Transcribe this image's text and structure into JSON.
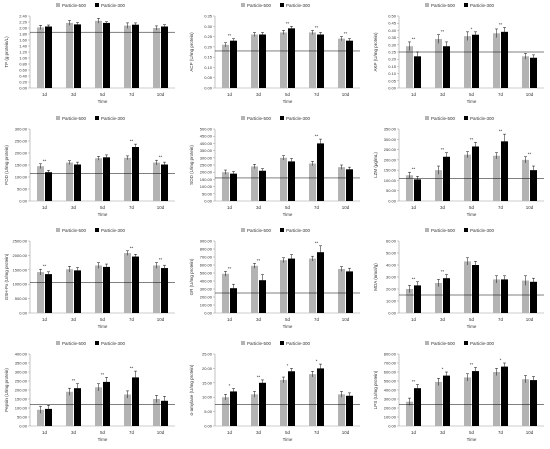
{
  "chart_data": [
    {
      "type": "bar",
      "ylabel": "TP (g protein/L)",
      "xlabel": "Time",
      "ylim": [
        0,
        2.4
      ],
      "yticks": [
        0,
        0.2,
        0.4,
        0.6,
        0.8,
        1.0,
        1.2,
        1.4,
        1.6,
        1.8,
        2.0,
        2.2,
        2.4
      ],
      "ytick_labels": [
        "0.00",
        "0.20",
        "0.40",
        "0.60",
        "0.80",
        "1.00",
        "1.20",
        "1.40",
        "1.60",
        "1.80",
        "2.00",
        "2.20",
        "2.40"
      ],
      "ref": 1.86,
      "categories": [
        "1d",
        "3d",
        "5d",
        "7d",
        "10d"
      ],
      "series": [
        {
          "name": "Particle-500",
          "values": [
            2.02,
            2.17,
            2.24,
            2.08,
            2.0
          ],
          "err": [
            0.07,
            0.08,
            0.08,
            0.09,
            0.07
          ]
        },
        {
          "name": "Particle-300",
          "values": [
            2.05,
            2.12,
            2.17,
            2.11,
            2.05
          ],
          "err": [
            0.05,
            0.06,
            0.04,
            0.06,
            0.06
          ]
        }
      ],
      "sig": [
        "",
        "",
        "",
        "",
        ""
      ]
    },
    {
      "type": "bar",
      "ylabel": "ACP (U/mg protein)",
      "xlabel": "Time",
      "ylim": [
        0,
        0.35
      ],
      "yticks": [
        0,
        0.05,
        0.1,
        0.15,
        0.2,
        0.25,
        0.3,
        0.35
      ],
      "ytick_labels": [
        "0.00",
        "0.05",
        "0.10",
        "0.15",
        "0.20",
        "0.25",
        "0.30",
        "0.35"
      ],
      "ref": 0.18,
      "categories": [
        "1d",
        "3d",
        "5d",
        "7d",
        "10d"
      ],
      "series": [
        {
          "name": "Particle-500",
          "values": [
            0.21,
            0.26,
            0.27,
            0.27,
            0.24
          ],
          "err": [
            0.01,
            0.01,
            0.01,
            0.01,
            0.01
          ]
        },
        {
          "name": "Particle-300",
          "values": [
            0.23,
            0.26,
            0.29,
            0.26,
            0.23
          ],
          "err": [
            0.01,
            0.01,
            0.01,
            0.01,
            0.01
          ]
        }
      ],
      "sig": [
        "**",
        "",
        "**",
        "**",
        "**"
      ]
    },
    {
      "type": "bar",
      "ylabel": "AKP (U/mg protein)",
      "xlabel": "Time",
      "ylim": [
        0,
        0.5
      ],
      "yticks": [
        0,
        0.05,
        0.1,
        0.15,
        0.2,
        0.25,
        0.3,
        0.35,
        0.4,
        0.45,
        0.5
      ],
      "ytick_labels": [
        "0.00",
        "0.05",
        "0.10",
        "0.15",
        "0.20",
        "0.25",
        "0.30",
        "0.35",
        "0.40",
        "0.45",
        "0.50"
      ],
      "ref": 0.25,
      "categories": [
        "1d",
        "3d",
        "5d",
        "7d",
        "10d"
      ],
      "series": [
        {
          "name": "Particle-500",
          "values": [
            0.29,
            0.34,
            0.36,
            0.38,
            0.22
          ],
          "err": [
            0.03,
            0.03,
            0.03,
            0.03,
            0.02
          ]
        },
        {
          "name": "Particle-300",
          "values": [
            0.22,
            0.29,
            0.37,
            0.39,
            0.21
          ],
          "err": [
            0.03,
            0.03,
            0.02,
            0.03,
            0.02
          ]
        }
      ],
      "sig": [
        "**",
        "**",
        "*",
        "**",
        ""
      ]
    },
    {
      "type": "bar",
      "ylabel": "POD (U/mg protein)",
      "xlabel": "Time",
      "ylim": [
        0,
        300
      ],
      "yticks": [
        0,
        50,
        100,
        150,
        200,
        250,
        300
      ],
      "ytick_labels": [
        "0.00",
        "50.00",
        "100.00",
        "150.00",
        "200.00",
        "250.00",
        "300.00"
      ],
      "ref": 115,
      "categories": [
        "1d",
        "3d",
        "5d",
        "7d",
        "10d"
      ],
      "series": [
        {
          "name": "Particle-500",
          "values": [
            145,
            160,
            178,
            180,
            160
          ],
          "err": [
            10,
            8,
            8,
            8,
            10
          ]
        },
        {
          "name": "Particle-300",
          "values": [
            120,
            152,
            182,
            225,
            152
          ],
          "err": [
            8,
            10,
            10,
            12,
            10
          ]
        }
      ],
      "sig": [
        "**",
        "",
        "",
        "**",
        "**"
      ]
    },
    {
      "type": "bar",
      "ylabel": "SOD (U/mg protein)",
      "xlabel": "Time",
      "ylim": [
        0,
        500
      ],
      "yticks": [
        0,
        50,
        100,
        150,
        200,
        250,
        300,
        350,
        400,
        450,
        500
      ],
      "ytick_labels": [
        "0.00",
        "50.00",
        "100.00",
        "150.00",
        "200.00",
        "250.00",
        "300.00",
        "350.00",
        "400.00",
        "450.00",
        "500.00"
      ],
      "ref": 160,
      "categories": [
        "1d",
        "3d",
        "5d",
        "7d",
        "10d"
      ],
      "series": [
        {
          "name": "Particle-500",
          "values": [
            200,
            240,
            300,
            260,
            235
          ],
          "err": [
            15,
            15,
            15,
            15,
            15
          ]
        },
        {
          "name": "Particle-300",
          "values": [
            190,
            210,
            275,
            400,
            220
          ],
          "err": [
            15,
            15,
            20,
            30,
            15
          ]
        }
      ],
      "sig": [
        "",
        "",
        "",
        "**",
        ""
      ]
    },
    {
      "type": "bar",
      "ylabel": "LZM (μg/mL)",
      "xlabel": "Time",
      "ylim": [
        0,
        350
      ],
      "yticks": [
        0,
        50,
        100,
        150,
        200,
        250,
        300,
        350
      ],
      "ytick_labels": [
        "0.00",
        "50.00",
        "100.00",
        "150.00",
        "200.00",
        "250.00",
        "300.00",
        "350.00"
      ],
      "ref": 110,
      "categories": [
        "1d",
        "3d",
        "5d",
        "7d",
        "10d"
      ],
      "series": [
        {
          "name": "Particle-500",
          "values": [
            125,
            150,
            225,
            220,
            200
          ],
          "err": [
            15,
            20,
            15,
            15,
            15
          ]
        },
        {
          "name": "Particle-300",
          "values": [
            105,
            215,
            265,
            290,
            150
          ],
          "err": [
            15,
            20,
            20,
            35,
            20
          ]
        }
      ],
      "sig": [
        "**",
        "**",
        "**",
        "**",
        "**"
      ]
    },
    {
      "type": "bar",
      "ylabel": "GSH-Px (U/mg protein)",
      "xlabel": "Time",
      "ylim": [
        0,
        2500
      ],
      "yticks": [
        0,
        500,
        1000,
        1500,
        2000,
        2500
      ],
      "ytick_labels": [
        "0.00",
        "500.00",
        "1000.00",
        "1500.00",
        "2000.00",
        "2500.00"
      ],
      "ref": 1050,
      "categories": [
        "1d",
        "3d",
        "5d",
        "7d",
        "10d"
      ],
      "series": [
        {
          "name": "Particle-500",
          "values": [
            1420,
            1520,
            1650,
            2080,
            1650
          ],
          "err": [
            100,
            100,
            100,
            80,
            100
          ]
        },
        {
          "name": "Particle-300",
          "values": [
            1350,
            1480,
            1600,
            1960,
            1560
          ],
          "err": [
            80,
            100,
            100,
            80,
            100
          ]
        }
      ],
      "sig": [
        "**",
        "",
        "",
        "**",
        "**"
      ]
    },
    {
      "type": "bar",
      "ylabel": "GR (U/mg protein)",
      "xlabel": "Time",
      "ylim": [
        0,
        900
      ],
      "yticks": [
        0,
        100,
        200,
        300,
        400,
        500,
        600,
        700,
        800,
        900
      ],
      "ytick_labels": [
        "0.00",
        "100.00",
        "200.00",
        "300.00",
        "400.00",
        "500.00",
        "600.00",
        "700.00",
        "800.00",
        "900.00"
      ],
      "ref": 250,
      "categories": [
        "1d",
        "3d",
        "5d",
        "7d",
        "10d"
      ],
      "series": [
        {
          "name": "Particle-500",
          "values": [
            490,
            590,
            660,
            680,
            550
          ],
          "err": [
            30,
            30,
            30,
            30,
            30
          ]
        },
        {
          "name": "Particle-300",
          "values": [
            310,
            410,
            680,
            760,
            520
          ],
          "err": [
            50,
            70,
            50,
            80,
            40
          ]
        }
      ],
      "sig": [
        "**",
        "**",
        "",
        "**",
        ""
      ]
    },
    {
      "type": "bar",
      "ylabel": "MDA (nmol/g)",
      "xlabel": "Time",
      "ylim": [
        0,
        60
      ],
      "yticks": [
        0,
        10,
        20,
        30,
        40,
        50,
        60
      ],
      "ytick_labels": [
        "0.00",
        "10.00",
        "20.00",
        "30.00",
        "40.00",
        "50.00",
        "60.00"
      ],
      "ref": 15,
      "categories": [
        "1d",
        "3d",
        "5d",
        "7d",
        "10d"
      ],
      "series": [
        {
          "name": "Particle-500",
          "values": [
            20,
            25,
            43,
            28,
            27
          ],
          "err": [
            3,
            3,
            3,
            3,
            4
          ]
        },
        {
          "name": "Particle-300",
          "values": [
            23,
            29,
            40,
            28,
            26
          ],
          "err": [
            3,
            3,
            3,
            3,
            3
          ]
        }
      ],
      "sig": [
        "**",
        "**",
        "",
        "",
        ""
      ]
    },
    {
      "type": "bar",
      "ylabel": "Pepsin (U/mg protein)",
      "xlabel": "Time",
      "ylim": [
        0,
        400
      ],
      "yticks": [
        0,
        50,
        100,
        150,
        200,
        250,
        300,
        350,
        400
      ],
      "ytick_labels": [
        "0.00",
        "50.00",
        "100.00",
        "150.00",
        "200.00",
        "250.00",
        "300.00",
        "350.00",
        "400.00"
      ],
      "ref": 120,
      "categories": [
        "1d",
        "3d",
        "5d",
        "7d",
        "10d"
      ],
      "series": [
        {
          "name": "Particle-500",
          "values": [
            90,
            190,
            215,
            175,
            150
          ],
          "err": [
            20,
            20,
            20,
            20,
            20
          ]
        },
        {
          "name": "Particle-300",
          "values": [
            95,
            210,
            245,
            270,
            140
          ],
          "err": [
            20,
            25,
            25,
            35,
            25
          ]
        }
      ],
      "sig": [
        "",
        "**",
        "**",
        "**",
        ""
      ]
    },
    {
      "type": "bar",
      "ylabel": "α-amylase (U/mg protein)",
      "xlabel": "Time",
      "ylim": [
        0,
        25
      ],
      "yticks": [
        0,
        5,
        10,
        15,
        20,
        25
      ],
      "ytick_labels": [
        "0.00",
        "5.00",
        "10.00",
        "15.00",
        "20.00",
        "25.00"
      ],
      "ref": 7.5,
      "categories": [
        "1d",
        "3d",
        "5d",
        "7d",
        "10d"
      ],
      "series": [
        {
          "name": "Particle-500",
          "values": [
            10,
            11,
            16,
            18,
            11
          ],
          "err": [
            1,
            1,
            1,
            1,
            1
          ]
        },
        {
          "name": "Particle-300",
          "values": [
            12,
            15,
            19,
            20,
            10.5
          ],
          "err": [
            1,
            1,
            1,
            1.5,
            1
          ]
        }
      ],
      "sig": [
        "*",
        "**",
        "*",
        "*",
        ""
      ]
    },
    {
      "type": "bar",
      "ylabel": "LPS (U/mg protein)",
      "xlabel": "Time",
      "ylim": [
        0,
        800
      ],
      "yticks": [
        0,
        100,
        200,
        300,
        400,
        500,
        600,
        700,
        800
      ],
      "ytick_labels": [
        "0.00",
        "100.00",
        "200.00",
        "300.00",
        "400.00",
        "500.00",
        "600.00",
        "700.00",
        "800.00"
      ],
      "ref": 240,
      "categories": [
        "1d",
        "3d",
        "5d",
        "7d",
        "10d"
      ],
      "series": [
        {
          "name": "Particle-500",
          "values": [
            270,
            490,
            540,
            600,
            520
          ],
          "err": [
            40,
            40,
            40,
            40,
            40
          ]
        },
        {
          "name": "Particle-300",
          "values": [
            420,
            560,
            610,
            660,
            510
          ],
          "err": [
            40,
            40,
            40,
            40,
            40
          ]
        }
      ],
      "sig": [
        "**",
        "*",
        "**",
        "*",
        ""
      ]
    }
  ],
  "colors": {
    "particle_500": "#b3b3b3",
    "particle_300": "#000000",
    "axis": "#9a9a9a",
    "ref_line": "#000000",
    "text": "#333333"
  }
}
